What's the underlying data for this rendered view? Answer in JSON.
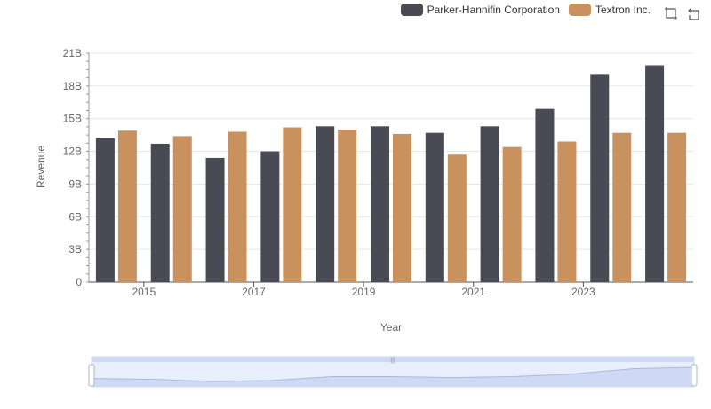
{
  "chart_data": {
    "type": "bar",
    "title": "",
    "xlabel": "Year",
    "ylabel": "Revenue",
    "ylim": [
      0,
      21
    ],
    "y_tick_labels": [
      "0",
      "3B",
      "6B",
      "9B",
      "12B",
      "15B",
      "18B",
      "21B"
    ],
    "categories": [
      "2014",
      "2015",
      "2016",
      "2017",
      "2018",
      "2019",
      "2020",
      "2021",
      "2022",
      "2023",
      "2024"
    ],
    "x_tick_labels_shown": [
      "2015",
      "2017",
      "2019",
      "2021",
      "2023"
    ],
    "series": [
      {
        "name": "Parker-Hannifin Corporation",
        "color": "#4a4a54",
        "values": [
          13.2,
          12.7,
          11.4,
          12.0,
          14.3,
          14.3,
          13.7,
          14.3,
          15.9,
          19.1,
          19.9
        ]
      },
      {
        "name": "Textron Inc.",
        "color": "#c8915e",
        "values": [
          13.9,
          13.4,
          13.8,
          14.2,
          14.0,
          13.6,
          11.7,
          12.4,
          12.9,
          13.7,
          13.7
        ]
      }
    ],
    "grid": true,
    "legend_position": "top-right"
  },
  "toolbox": {
    "zoom_icon": "zoom-icon",
    "restore_icon": "restore-icon"
  },
  "datazoom": {
    "start": 0,
    "end": 100
  }
}
